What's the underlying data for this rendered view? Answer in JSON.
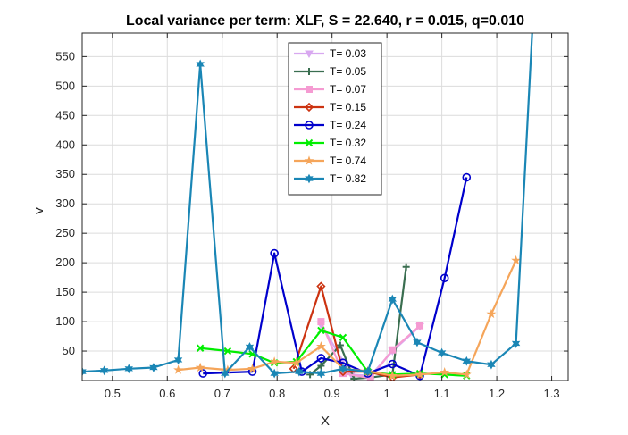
{
  "chart_data": {
    "type": "line",
    "title": "Local variance per term: XLF, S = 22.640, r = 0.015, q=0.010",
    "xlabel": "X",
    "ylabel": "v",
    "xlim": [
      0.445,
      1.33
    ],
    "ylim": [
      0,
      590
    ],
    "xticks": [
      0.5,
      0.6,
      0.7,
      0.8,
      0.9,
      1,
      1.1,
      1.2,
      1.3
    ],
    "xtick_labels": [
      "0.5",
      "0.6",
      "0.7",
      "0.8",
      "0.9",
      "1",
      "1.1",
      "1.2",
      "1.3"
    ],
    "yticks": [
      50,
      100,
      150,
      200,
      250,
      300,
      350,
      400,
      450,
      500,
      550
    ],
    "ytick_labels": [
      "50",
      "100",
      "150",
      "200",
      "250",
      "300",
      "350",
      "400",
      "450",
      "500",
      "550"
    ],
    "grid": true,
    "legend_position": "top-center",
    "series": [
      {
        "name": "T= 0.03",
        "color": "#d8a8f0",
        "marker": "triangle-down",
        "x": [
          0.88,
          0.935,
          0.97,
          1.01,
          1.06
        ],
        "y": [
          95,
          10,
          8,
          50,
          92
        ]
      },
      {
        "name": "T= 0.05",
        "color": "#3a6e50",
        "marker": "plus",
        "x": [
          0.86,
          0.88,
          0.915,
          0.94,
          0.97,
          1.01,
          1.035
        ],
        "y": [
          10,
          25,
          60,
          3,
          5,
          10,
          193
        ]
      },
      {
        "name": "T= 0.07",
        "color": "#f59bd2",
        "marker": "square",
        "x": [
          0.88,
          0.92,
          0.97,
          1.01,
          1.06
        ],
        "y": [
          100,
          12,
          4,
          52,
          93
        ]
      },
      {
        "name": "T= 0.15",
        "color": "#cc3311",
        "marker": "diamond",
        "x": [
          0.83,
          0.88,
          0.92,
          0.965,
          1.01,
          1.06
        ],
        "y": [
          20,
          160,
          15,
          15,
          5,
          10
        ]
      },
      {
        "name": "T= 0.24",
        "color": "#0000cc",
        "marker": "circle",
        "x": [
          0.665,
          0.755,
          0.795,
          0.845,
          0.88,
          0.92,
          0.965,
          1.01,
          1.06,
          1.105,
          1.145
        ],
        "y": [
          12,
          15,
          216,
          15,
          38,
          30,
          12,
          28,
          8,
          174,
          345
        ]
      },
      {
        "name": "T= 0.32",
        "color": "#00ee00",
        "marker": "cross",
        "x": [
          0.66,
          0.71,
          0.755,
          0.795,
          0.835,
          0.88,
          0.92,
          0.965,
          1.01,
          1.06,
          1.105,
          1.145
        ],
        "y": [
          55,
          50,
          45,
          30,
          32,
          85,
          73,
          15,
          10,
          12,
          10,
          8
        ]
      },
      {
        "name": "T= 0.74",
        "color": "#f5a55a",
        "marker": "star",
        "x": [
          0.62,
          0.66,
          0.71,
          0.755,
          0.795,
          0.835,
          0.88,
          0.92,
          0.965,
          1.01,
          1.06,
          1.105,
          1.145,
          1.19,
          1.235
        ],
        "y": [
          18,
          22,
          18,
          20,
          32,
          30,
          58,
          20,
          16,
          8,
          10,
          14,
          10,
          113,
          204
        ]
      },
      {
        "name": "T= 0.82",
        "color": "#1a86b5",
        "marker": "hexagram",
        "x": [
          0.445,
          0.485,
          0.53,
          0.575,
          0.62,
          0.66,
          0.705,
          0.75,
          0.795,
          0.84,
          0.88,
          0.92,
          0.965,
          1.01,
          1.055,
          1.1,
          1.145,
          1.19,
          1.235,
          1.265
        ],
        "y": [
          15,
          17,
          20,
          22,
          35,
          537,
          12,
          57,
          12,
          15,
          12,
          20,
          15,
          138,
          65,
          47,
          33,
          27,
          63,
          600
        ]
      }
    ]
  }
}
